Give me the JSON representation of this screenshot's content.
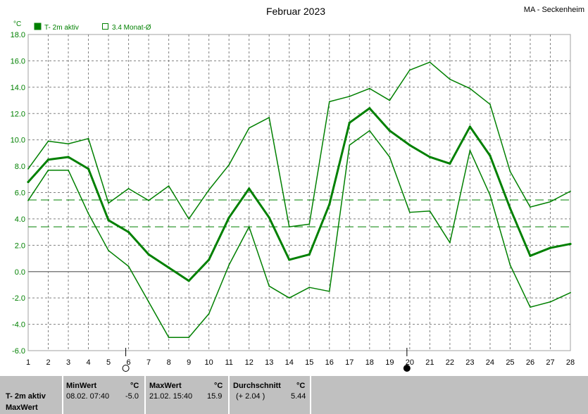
{
  "header": {
    "title": "Februar 2023",
    "station": "MA - Seckenheim",
    "unit_label": "°C"
  },
  "legend": {
    "active_label": "T- 2m aktiv",
    "mean_label": "3.4 Monat-Ø"
  },
  "colors": {
    "series": "#008000",
    "reference": "#008000",
    "grid": "#808080",
    "zero_line": "#808080",
    "footer_bg": "#c0c0c0"
  },
  "moon_phases": [
    {
      "day": 6,
      "phase": "full-moon-icon"
    },
    {
      "day": 20,
      "phase": "new-moon-icon"
    }
  ],
  "chart_data": {
    "type": "line",
    "title": "Februar 2023",
    "ylabel": "°C",
    "x": [
      1,
      2,
      3,
      4,
      5,
      6,
      7,
      8,
      9,
      10,
      11,
      12,
      13,
      14,
      15,
      16,
      17,
      18,
      19,
      20,
      21,
      22,
      23,
      24,
      25,
      26,
      27,
      28
    ],
    "xlim": [
      1,
      28
    ],
    "ylim": [
      -6,
      18
    ],
    "yticks": [
      -6,
      -4,
      -2,
      0,
      2,
      4,
      6,
      8,
      10,
      12,
      14,
      16,
      18
    ],
    "grid": true,
    "legend_position": "top-left",
    "series": [
      {
        "name": "T- 2m aktiv",
        "role": "mean",
        "values": [
          6.8,
          8.5,
          8.7,
          7.8,
          3.9,
          3.0,
          1.3,
          0.3,
          -0.7,
          0.9,
          4.1,
          6.3,
          4.1,
          0.9,
          1.3,
          5.1,
          11.3,
          12.4,
          10.7,
          9.6,
          8.7,
          8.2,
          11.0,
          8.8,
          4.8,
          1.2,
          1.8,
          2.1
        ]
      },
      {
        "role": "max",
        "values": [
          7.8,
          9.9,
          9.7,
          10.1,
          5.2,
          6.3,
          5.4,
          6.5,
          4.0,
          6.2,
          8.1,
          10.9,
          11.7,
          3.4,
          3.6,
          12.9,
          13.3,
          13.9,
          13.0,
          15.3,
          15.9,
          14.6,
          13.9,
          12.7,
          7.6,
          4.9,
          5.3,
          6.1
        ]
      },
      {
        "role": "min",
        "values": [
          5.4,
          7.7,
          7.7,
          4.4,
          1.6,
          0.4,
          -2.3,
          -5.0,
          -5.0,
          -3.2,
          0.5,
          3.4,
          -1.1,
          -2.0,
          -1.2,
          -1.5,
          9.6,
          10.7,
          8.7,
          4.5,
          4.6,
          2.2,
          9.2,
          5.8,
          0.5,
          -2.7,
          -2.3,
          -1.6
        ]
      }
    ],
    "reference_lines": [
      {
        "name": "3.4 Monat-Ø",
        "value": 3.4
      },
      {
        "value": 5.44
      }
    ]
  },
  "footer": {
    "row_label_1": "T- 2m aktiv",
    "row_label_2": "MaxWert",
    "min_header": "MinWert",
    "min_unit": "°C",
    "min_time": "08.02.  07:40",
    "min_value": "-5.0",
    "max_header": "MaxWert",
    "max_unit": "°C",
    "max_time": "21.02.  15:40",
    "max_value": "15.9",
    "avg_header": "Durchschnitt",
    "avg_unit": "°C",
    "avg_delta": "(+ 2.04 )",
    "avg_value": "5.44"
  }
}
